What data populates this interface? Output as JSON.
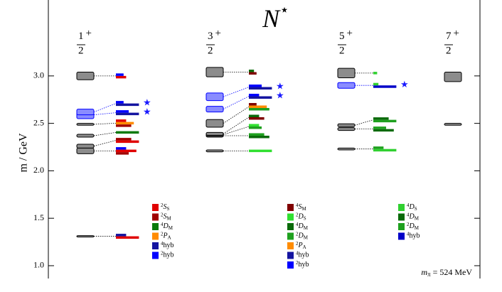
{
  "chart_data": {
    "type": "spectrum",
    "title": {
      "main": "N",
      "sup": "⋆"
    },
    "y_label": "m / GeV",
    "annotation": {
      "main": "m",
      "sub": "π",
      "rest": " = 524 MeV"
    },
    "ylim": [
      0.88,
      3.8
    ],
    "yticks": [
      {
        "value": 1.0,
        "label": "1.0"
      },
      {
        "value": 1.5,
        "label": "1.5"
      },
      {
        "value": 2.0,
        "label": "2.0"
      },
      {
        "value": 2.5,
        "label": "2.5"
      },
      {
        "value": 3.0,
        "label": "3.0"
      }
    ],
    "colors": {
      "box": "#8c8c8c",
      "hybrid_box": "#8a8cff",
      "star": "#1a1aff"
    },
    "columns": [
      {
        "label": {
          "num": "1",
          "den": "2",
          "parity": "+"
        },
        "legend": [
          {
            "sup": "2",
            "main": "S",
            "sub": "S",
            "color": "#e00000"
          },
          {
            "sup": "2",
            "main": "S",
            "sub": "M",
            "color": "#a00000"
          },
          {
            "sup": "4",
            "main": "D",
            "sub": "M",
            "color": "#0a7a0a"
          },
          {
            "sup": "2",
            "main": "P",
            "sub": "A",
            "color": "#ff8c00"
          },
          {
            "sup": "4",
            "main": "hyb",
            "color": "#1414a0"
          },
          {
            "sup": "2",
            "main": "hyb",
            "color": "#0000ff"
          }
        ],
        "levels": [
          {
            "mass": 1.31,
            "err": 0.005,
            "components": [
              {
                "op": 0,
                "value": 0.9
              },
              {
                "op": 4,
                "value": 0.4
              }
            ]
          },
          {
            "mass": 2.21,
            "err": 0.03,
            "components": [
              {
                "op": 1,
                "value": 0.5
              },
              {
                "op": 0,
                "value": 0.8
              },
              {
                "op": 5,
                "value": 0.4
              }
            ]
          },
          {
            "mass": 2.26,
            "err": 0.02,
            "components": [
              {
                "op": 0,
                "value": 0.9
              },
              {
                "op": 1,
                "value": 0.6
              }
            ]
          },
          {
            "mass": 2.37,
            "err": 0.015,
            "components": [
              {
                "op": 2,
                "value": 0.9
              }
            ]
          },
          {
            "mass": 2.49,
            "err": 0.01,
            "components": [
              {
                "op": 1,
                "value": 0.6
              },
              {
                "op": 3,
                "value": 0.7
              },
              {
                "op": 0,
                "value": 0.4
              }
            ]
          },
          {
            "mass": 2.59,
            "err": 0.04,
            "hybrid": true,
            "components": [
              {
                "op": 4,
                "value": 0.9
              },
              {
                "op": 5,
                "value": 0.5
              }
            ]
          },
          {
            "mass": 2.62,
            "err": 0.03,
            "hybrid": true,
            "components": [
              {
                "op": 4,
                "value": 0.9
              },
              {
                "op": 5,
                "value": 0.3
              }
            ]
          },
          {
            "mass": 3.0,
            "err": 0.04,
            "components": [
              {
                "op": 0,
                "value": 0.4
              },
              {
                "op": 5,
                "value": 0.3
              }
            ]
          }
        ]
      },
      {
        "label": {
          "num": "3",
          "den": "2",
          "parity": "+"
        },
        "legend": [
          {
            "sup": "4",
            "main": "S",
            "sub": "M",
            "color": "#800000"
          },
          {
            "sup": "2",
            "main": "D",
            "sub": "S",
            "color": "#30e030"
          },
          {
            "sup": "4",
            "main": "D",
            "sub": "M",
            "color": "#0a6a0a"
          },
          {
            "sup": "2",
            "main": "D",
            "sub": "M",
            "color": "#1ea01e"
          },
          {
            "sup": "2",
            "main": "P",
            "sub": "A",
            "color": "#ff8c00"
          },
          {
            "sup": "4",
            "main": "hyb",
            "color": "#1414a0"
          },
          {
            "sup": "2",
            "main": "hyb",
            "color": "#0000ff"
          }
        ],
        "levels": [
          {
            "mass": 2.21,
            "err": 0.01,
            "components": [
              {
                "op": 1,
                "value": 0.9
              }
            ]
          },
          {
            "mass": 2.37,
            "err": 0.015,
            "components": [
              {
                "op": 2,
                "value": 0.8
              },
              {
                "op": 3,
                "value": 0.6
              }
            ]
          },
          {
            "mass": 2.38,
            "err": 0.015,
            "components": [
              {
                "op": 3,
                "value": 0.5
              },
              {
                "op": 1,
                "value": 0.4
              }
            ]
          },
          {
            "mass": 2.39,
            "err": 0.015,
            "components": [
              {
                "op": 0,
                "value": 0.6
              },
              {
                "op": 2,
                "value": 0.4
              }
            ]
          },
          {
            "mass": 2.5,
            "err": 0.04,
            "components": [
              {
                "op": 3,
                "value": 0.8
              },
              {
                "op": 4,
                "value": 0.7
              },
              {
                "op": 0,
                "value": 0.3
              }
            ]
          },
          {
            "mass": 2.65,
            "err": 0.03,
            "hybrid": true,
            "components": [
              {
                "op": 5,
                "value": 0.9
              },
              {
                "op": 6,
                "value": 0.4
              }
            ]
          },
          {
            "mass": 2.78,
            "err": 0.04,
            "hybrid": true,
            "components": [
              {
                "op": 5,
                "value": 0.9
              },
              {
                "op": 6,
                "value": 0.5
              }
            ]
          },
          {
            "mass": 3.04,
            "err": 0.05,
            "components": [
              {
                "op": 0,
                "value": 0.3
              },
              {
                "op": 2,
                "value": 0.2
              }
            ]
          }
        ]
      },
      {
        "label": {
          "num": "5",
          "den": "2",
          "parity": "+"
        },
        "legend": [
          {
            "sup": "4",
            "main": "D",
            "sub": "S",
            "color": "#30d030"
          },
          {
            "sup": "4",
            "main": "D",
            "sub": "M",
            "color": "#0a6a0a"
          },
          {
            "sup": "2",
            "main": "D",
            "sub": "M",
            "color": "#1ea01e"
          },
          {
            "sup": "4",
            "main": "hyb",
            "color": "#0000c8"
          }
        ],
        "levels": [
          {
            "mass": 2.23,
            "err": 0.01,
            "components": [
              {
                "op": 0,
                "value": 0.9
              },
              {
                "op": 2,
                "value": 0.4
              }
            ]
          },
          {
            "mass": 2.44,
            "err": 0.015,
            "components": [
              {
                "op": 1,
                "value": 0.8
              },
              {
                "op": 2,
                "value": 0.5
              }
            ]
          },
          {
            "mass": 2.48,
            "err": 0.015,
            "components": [
              {
                "op": 2,
                "value": 0.9
              },
              {
                "op": 1,
                "value": 0.6
              }
            ]
          },
          {
            "mass": 2.9,
            "err": 0.03,
            "hybrid": true,
            "components": [
              {
                "op": 3,
                "value": 0.9
              },
              {
                "op": 0,
                "value": 0.2
              }
            ]
          },
          {
            "mass": 3.03,
            "err": 0.05,
            "components": [
              {
                "op": 0,
                "value": 0.15
              }
            ]
          }
        ]
      },
      {
        "label": {
          "num": "7",
          "den": "2",
          "parity": "+"
        },
        "levels": [
          {
            "mass": 2.49,
            "err": 0.01
          },
          {
            "mass": 2.99,
            "err": 0.05
          }
        ]
      }
    ]
  }
}
